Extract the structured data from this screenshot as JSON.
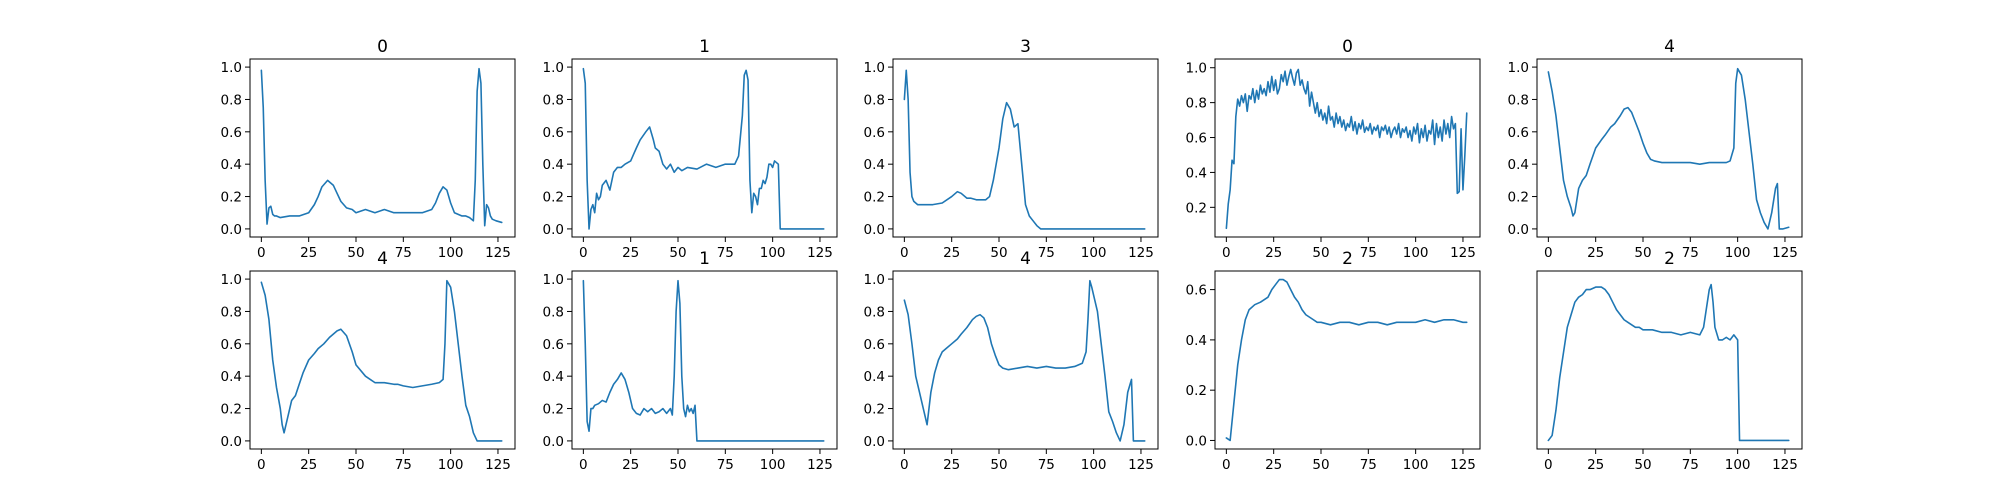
{
  "chart_data": [
    {
      "type": "line",
      "title": "0",
      "xlim": [
        -6,
        134
      ],
      "ylim": [
        -0.05,
        1.05
      ],
      "xticks": [
        0,
        25,
        50,
        75,
        100,
        125
      ],
      "yticks": [
        0.0,
        0.2,
        0.4,
        0.6,
        0.8,
        1.0
      ],
      "x": [
        0,
        1,
        2,
        3,
        4,
        5,
        6,
        7,
        8,
        10,
        15,
        20,
        25,
        28,
        30,
        32,
        35,
        38,
        40,
        42,
        45,
        48,
        50,
        55,
        60,
        65,
        70,
        75,
        80,
        85,
        90,
        92,
        94,
        96,
        98,
        100,
        102,
        104,
        106,
        108,
        110,
        112,
        113,
        114,
        115,
        116,
        117,
        118,
        119,
        120,
        121,
        122,
        124,
        127
      ],
      "y": [
        0.98,
        0.75,
        0.3,
        0.03,
        0.13,
        0.14,
        0.09,
        0.08,
        0.08,
        0.07,
        0.08,
        0.08,
        0.1,
        0.15,
        0.2,
        0.26,
        0.3,
        0.27,
        0.22,
        0.17,
        0.13,
        0.12,
        0.1,
        0.12,
        0.1,
        0.12,
        0.1,
        0.1,
        0.1,
        0.1,
        0.12,
        0.16,
        0.22,
        0.26,
        0.24,
        0.16,
        0.1,
        0.09,
        0.08,
        0.08,
        0.07,
        0.05,
        0.3,
        0.85,
        0.99,
        0.9,
        0.4,
        0.02,
        0.15,
        0.13,
        0.08,
        0.06,
        0.05,
        0.04
      ]
    },
    {
      "type": "line",
      "title": "1",
      "xlim": [
        -6,
        134
      ],
      "ylim": [
        -0.05,
        1.05
      ],
      "xticks": [
        0,
        25,
        50,
        75,
        100,
        125
      ],
      "yticks": [
        0.0,
        0.2,
        0.4,
        0.6,
        0.8,
        1.0
      ],
      "x": [
        0,
        1,
        2,
        3,
        4,
        5,
        6,
        7,
        8,
        9,
        10,
        12,
        14,
        16,
        18,
        20,
        22,
        25,
        28,
        30,
        33,
        35,
        37,
        38,
        40,
        42,
        44,
        46,
        48,
        50,
        52,
        55,
        60,
        65,
        70,
        75,
        80,
        82,
        84,
        85,
        86,
        87,
        88,
        89,
        90,
        91,
        92,
        93,
        94,
        95,
        96,
        97,
        98,
        99,
        100,
        101,
        102,
        103,
        104,
        106,
        110,
        120,
        127
      ],
      "y": [
        0.99,
        0.9,
        0.3,
        0.0,
        0.12,
        0.15,
        0.1,
        0.22,
        0.18,
        0.2,
        0.27,
        0.3,
        0.24,
        0.35,
        0.38,
        0.38,
        0.4,
        0.42,
        0.5,
        0.55,
        0.6,
        0.63,
        0.55,
        0.5,
        0.48,
        0.4,
        0.37,
        0.4,
        0.35,
        0.38,
        0.36,
        0.38,
        0.37,
        0.4,
        0.38,
        0.4,
        0.4,
        0.45,
        0.7,
        0.95,
        0.98,
        0.92,
        0.3,
        0.1,
        0.22,
        0.2,
        0.15,
        0.25,
        0.25,
        0.3,
        0.28,
        0.32,
        0.4,
        0.4,
        0.38,
        0.42,
        0.41,
        0.4,
        0.0,
        0.0,
        0.0,
        0.0,
        0.0
      ]
    },
    {
      "type": "line",
      "title": "3",
      "xlim": [
        -6,
        134
      ],
      "ylim": [
        -0.05,
        1.05
      ],
      "xticks": [
        0,
        25,
        50,
        75,
        100,
        125
      ],
      "yticks": [
        0.0,
        0.2,
        0.4,
        0.6,
        0.8,
        1.0
      ],
      "x": [
        0,
        1,
        2,
        3,
        4,
        5,
        7,
        10,
        15,
        20,
        25,
        28,
        30,
        33,
        35,
        38,
        40,
        43,
        45,
        47,
        50,
        52,
        54,
        56,
        58,
        60,
        62,
        64,
        66,
        68,
        70,
        72,
        80,
        100,
        127
      ],
      "y": [
        0.8,
        0.98,
        0.8,
        0.35,
        0.2,
        0.17,
        0.15,
        0.15,
        0.15,
        0.16,
        0.2,
        0.23,
        0.22,
        0.19,
        0.19,
        0.18,
        0.18,
        0.18,
        0.2,
        0.3,
        0.5,
        0.68,
        0.78,
        0.74,
        0.63,
        0.65,
        0.4,
        0.15,
        0.08,
        0.05,
        0.02,
        0.0,
        0.0,
        0.0,
        0.0
      ]
    },
    {
      "type": "line",
      "title": "0",
      "xlim": [
        -6,
        134
      ],
      "ylim": [
        0.03,
        1.05
      ],
      "xticks": [
        0,
        25,
        50,
        75,
        100,
        125
      ],
      "yticks": [
        0.2,
        0.4,
        0.6,
        0.8,
        1.0
      ],
      "x": [
        0,
        1,
        2,
        3,
        4,
        5,
        6,
        7,
        8,
        9,
        10,
        11,
        12,
        13,
        14,
        15,
        16,
        17,
        18,
        19,
        20,
        21,
        22,
        23,
        24,
        25,
        26,
        27,
        28,
        29,
        30,
        31,
        32,
        33,
        34,
        35,
        36,
        37,
        38,
        39,
        40,
        41,
        42,
        43,
        44,
        45,
        46,
        47,
        48,
        49,
        50,
        51,
        52,
        53,
        54,
        55,
        56,
        57,
        58,
        59,
        60,
        61,
        62,
        63,
        64,
        65,
        66,
        67,
        68,
        69,
        70,
        71,
        72,
        73,
        74,
        75,
        76,
        77,
        78,
        79,
        80,
        81,
        82,
        83,
        84,
        85,
        86,
        87,
        88,
        89,
        90,
        91,
        92,
        93,
        94,
        95,
        96,
        97,
        98,
        99,
        100,
        101,
        102,
        103,
        104,
        105,
        106,
        107,
        108,
        109,
        110,
        111,
        112,
        113,
        114,
        115,
        116,
        117,
        118,
        119,
        120,
        121,
        122,
        123,
        124,
        125,
        126,
        127
      ],
      "y": [
        0.08,
        0.22,
        0.3,
        0.47,
        0.45,
        0.72,
        0.82,
        0.78,
        0.84,
        0.8,
        0.85,
        0.75,
        0.84,
        0.82,
        0.88,
        0.8,
        0.87,
        0.82,
        0.9,
        0.85,
        0.88,
        0.84,
        0.92,
        0.86,
        0.95,
        0.87,
        0.93,
        0.85,
        0.88,
        0.96,
        0.92,
        0.98,
        0.9,
        0.95,
        0.99,
        0.94,
        0.9,
        0.97,
        0.99,
        0.9,
        0.93,
        0.88,
        0.85,
        0.92,
        0.78,
        0.86,
        0.8,
        0.74,
        0.8,
        0.72,
        0.76,
        0.7,
        0.74,
        0.68,
        0.78,
        0.7,
        0.72,
        0.66,
        0.74,
        0.68,
        0.72,
        0.66,
        0.7,
        0.64,
        0.68,
        0.66,
        0.72,
        0.64,
        0.69,
        0.62,
        0.68,
        0.65,
        0.7,
        0.63,
        0.66,
        0.64,
        0.68,
        0.62,
        0.66,
        0.64,
        0.67,
        0.6,
        0.66,
        0.64,
        0.67,
        0.62,
        0.66,
        0.6,
        0.64,
        0.66,
        0.62,
        0.68,
        0.6,
        0.65,
        0.63,
        0.66,
        0.6,
        0.64,
        0.58,
        0.66,
        0.62,
        0.68,
        0.57,
        0.65,
        0.6,
        0.67,
        0.58,
        0.64,
        0.62,
        0.7,
        0.56,
        0.68,
        0.6,
        0.66,
        0.58,
        0.7,
        0.62,
        0.68,
        0.6,
        0.72,
        0.65,
        0.68,
        0.28,
        0.29,
        0.65,
        0.3,
        0.5,
        0.74
      ]
    },
    {
      "type": "line",
      "title": "4",
      "xlim": [
        -6,
        134
      ],
      "ylim": [
        -0.05,
        1.05
      ],
      "xticks": [
        0,
        25,
        50,
        75,
        100,
        125
      ],
      "yticks": [
        0.0,
        0.2,
        0.4,
        0.6,
        0.8,
        1.0
      ],
      "x": [
        0,
        2,
        4,
        6,
        8,
        10,
        12,
        13,
        14,
        16,
        18,
        20,
        22,
        25,
        28,
        30,
        33,
        35,
        38,
        40,
        42,
        44,
        46,
        48,
        50,
        52,
        54,
        56,
        60,
        65,
        70,
        75,
        80,
        85,
        90,
        94,
        96,
        98,
        99,
        100,
        102,
        104,
        106,
        108,
        110,
        112,
        114,
        116,
        118,
        120,
        121,
        122,
        124,
        127
      ],
      "y": [
        0.97,
        0.85,
        0.7,
        0.5,
        0.3,
        0.2,
        0.13,
        0.08,
        0.1,
        0.25,
        0.3,
        0.33,
        0.4,
        0.5,
        0.55,
        0.58,
        0.63,
        0.65,
        0.7,
        0.74,
        0.75,
        0.72,
        0.66,
        0.6,
        0.53,
        0.47,
        0.43,
        0.42,
        0.41,
        0.41,
        0.41,
        0.41,
        0.4,
        0.41,
        0.41,
        0.41,
        0.42,
        0.5,
        0.9,
        0.99,
        0.95,
        0.8,
        0.6,
        0.4,
        0.18,
        0.1,
        0.04,
        0.0,
        0.1,
        0.25,
        0.28,
        0.0,
        0.0,
        0.01
      ]
    },
    {
      "type": "line",
      "title": "4",
      "xlim": [
        -6,
        134
      ],
      "ylim": [
        -0.05,
        1.05
      ],
      "xticks": [
        0,
        25,
        50,
        75,
        100,
        125
      ],
      "yticks": [
        0.0,
        0.2,
        0.4,
        0.6,
        0.8,
        1.0
      ],
      "x": [
        0,
        2,
        4,
        6,
        8,
        10,
        11,
        12,
        14,
        16,
        18,
        20,
        22,
        25,
        28,
        30,
        33,
        36,
        40,
        42,
        45,
        48,
        50,
        55,
        60,
        65,
        70,
        72,
        75,
        80,
        85,
        90,
        94,
        96,
        97,
        98,
        100,
        102,
        104,
        106,
        108,
        110,
        112,
        114,
        116,
        118,
        120,
        124,
        127
      ],
      "y": [
        0.98,
        0.9,
        0.75,
        0.5,
        0.33,
        0.2,
        0.1,
        0.05,
        0.15,
        0.25,
        0.28,
        0.35,
        0.42,
        0.5,
        0.54,
        0.57,
        0.6,
        0.64,
        0.68,
        0.69,
        0.65,
        0.55,
        0.47,
        0.4,
        0.36,
        0.36,
        0.35,
        0.35,
        0.34,
        0.33,
        0.34,
        0.35,
        0.36,
        0.38,
        0.6,
        0.99,
        0.95,
        0.8,
        0.6,
        0.4,
        0.22,
        0.15,
        0.05,
        0.0,
        0.0,
        0.0,
        0.0,
        0.0,
        0.0
      ]
    },
    {
      "type": "line",
      "title": "1",
      "xlim": [
        -6,
        134
      ],
      "ylim": [
        -0.05,
        1.05
      ],
      "xticks": [
        0,
        25,
        50,
        75,
        100,
        125
      ],
      "yticks": [
        0.0,
        0.2,
        0.4,
        0.6,
        0.8,
        1.0
      ],
      "x": [
        0,
        1,
        2,
        3,
        4,
        5,
        6,
        8,
        10,
        12,
        14,
        16,
        18,
        20,
        21,
        22,
        24,
        25,
        26,
        28,
        30,
        32,
        34,
        36,
        38,
        40,
        42,
        44,
        46,
        47,
        48,
        49,
        50,
        51,
        52,
        53,
        54,
        55,
        56,
        57,
        58,
        59,
        60,
        61,
        62,
        70,
        90,
        110,
        127
      ],
      "y": [
        0.99,
        0.6,
        0.12,
        0.06,
        0.2,
        0.2,
        0.22,
        0.23,
        0.25,
        0.24,
        0.3,
        0.35,
        0.38,
        0.42,
        0.4,
        0.38,
        0.3,
        0.25,
        0.2,
        0.17,
        0.16,
        0.2,
        0.18,
        0.2,
        0.17,
        0.18,
        0.2,
        0.17,
        0.2,
        0.16,
        0.4,
        0.8,
        0.99,
        0.85,
        0.4,
        0.2,
        0.15,
        0.22,
        0.18,
        0.2,
        0.17,
        0.22,
        0.0,
        0.0,
        0.0,
        0.0,
        0.0,
        0.0,
        0.0
      ]
    },
    {
      "type": "line",
      "title": "4",
      "xlim": [
        -6,
        134
      ],
      "ylim": [
        -0.05,
        1.05
      ],
      "xticks": [
        0,
        25,
        50,
        75,
        100,
        125
      ],
      "yticks": [
        0.0,
        0.2,
        0.4,
        0.6,
        0.8,
        1.0
      ],
      "x": [
        0,
        2,
        4,
        6,
        8,
        10,
        12,
        14,
        16,
        18,
        20,
        22,
        25,
        28,
        30,
        33,
        36,
        38,
        40,
        42,
        44,
        46,
        48,
        50,
        52,
        55,
        60,
        65,
        70,
        75,
        80,
        85,
        90,
        94,
        96,
        97,
        98,
        99,
        100,
        102,
        104,
        106,
        108,
        110,
        112,
        114,
        116,
        118,
        120,
        121,
        122,
        124,
        127
      ],
      "y": [
        0.87,
        0.78,
        0.6,
        0.4,
        0.3,
        0.2,
        0.1,
        0.3,
        0.42,
        0.5,
        0.55,
        0.57,
        0.6,
        0.63,
        0.66,
        0.7,
        0.75,
        0.77,
        0.78,
        0.76,
        0.7,
        0.6,
        0.53,
        0.47,
        0.45,
        0.44,
        0.45,
        0.46,
        0.45,
        0.46,
        0.45,
        0.45,
        0.46,
        0.48,
        0.55,
        0.75,
        0.99,
        0.95,
        0.9,
        0.8,
        0.6,
        0.4,
        0.18,
        0.12,
        0.05,
        0.0,
        0.1,
        0.3,
        0.38,
        0.0,
        0.0,
        0.0,
        0.0
      ]
    },
    {
      "type": "line",
      "title": "2",
      "xlim": [
        -6,
        134
      ],
      "ylim": [
        -0.034,
        0.674
      ],
      "xticks": [
        0,
        25,
        50,
        75,
        100,
        125
      ],
      "yticks": [
        0.0,
        0.2,
        0.4,
        0.6
      ],
      "x": [
        0,
        2,
        4,
        6,
        8,
        10,
        12,
        15,
        18,
        20,
        22,
        24,
        26,
        28,
        30,
        32,
        34,
        36,
        38,
        40,
        42,
        44,
        46,
        48,
        50,
        55,
        60,
        65,
        70,
        75,
        80,
        85,
        90,
        95,
        100,
        105,
        110,
        115,
        120,
        125,
        127
      ],
      "y": [
        0.01,
        0.0,
        0.15,
        0.3,
        0.4,
        0.48,
        0.52,
        0.54,
        0.55,
        0.56,
        0.57,
        0.6,
        0.62,
        0.64,
        0.64,
        0.63,
        0.6,
        0.57,
        0.55,
        0.52,
        0.5,
        0.49,
        0.48,
        0.47,
        0.47,
        0.46,
        0.47,
        0.47,
        0.46,
        0.47,
        0.47,
        0.46,
        0.47,
        0.47,
        0.47,
        0.48,
        0.47,
        0.48,
        0.48,
        0.47,
        0.47
      ]
    },
    {
      "type": "line",
      "title": "2",
      "xlim": [
        -6,
        134
      ],
      "ylim": [
        -0.034,
        0.674
      ],
      "xticks": [
        0,
        25,
        50,
        75,
        100,
        125
      ],
      "yticks": [],
      "x": [
        0,
        2,
        4,
        6,
        8,
        10,
        12,
        14,
        16,
        18,
        20,
        22,
        25,
        28,
        30,
        32,
        34,
        36,
        38,
        40,
        42,
        44,
        46,
        48,
        50,
        55,
        60,
        65,
        70,
        75,
        80,
        82,
        84,
        85,
        86,
        87,
        88,
        90,
        92,
        94,
        96,
        98,
        99,
        100,
        101,
        102,
        110,
        120,
        127
      ],
      "y": [
        0.0,
        0.02,
        0.12,
        0.25,
        0.35,
        0.45,
        0.5,
        0.55,
        0.57,
        0.58,
        0.6,
        0.6,
        0.61,
        0.61,
        0.6,
        0.58,
        0.55,
        0.52,
        0.5,
        0.48,
        0.47,
        0.46,
        0.45,
        0.45,
        0.44,
        0.44,
        0.43,
        0.43,
        0.42,
        0.43,
        0.42,
        0.45,
        0.55,
        0.6,
        0.62,
        0.55,
        0.45,
        0.4,
        0.4,
        0.41,
        0.4,
        0.42,
        0.41,
        0.4,
        0.0,
        0.0,
        0.0,
        0.0,
        0.0
      ]
    }
  ]
}
